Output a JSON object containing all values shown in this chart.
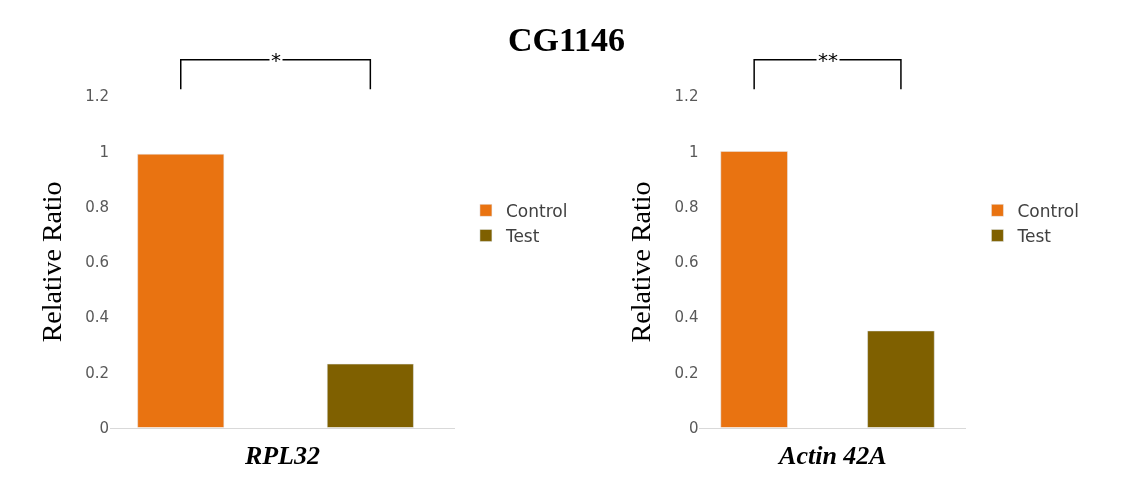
{
  "chart_data": [
    {
      "type": "bar",
      "xlabel": "RPL32",
      "ylabel": "Relative Ratio",
      "categories": [
        null
      ],
      "series": [
        {
          "name": "Control",
          "color": "#e97311",
          "values": [
            0.99
          ]
        },
        {
          "name": "Test",
          "color": "#7f6000",
          "values": [
            0.23
          ]
        }
      ],
      "ylim": [
        0,
        1.2
      ],
      "yticks": [
        0,
        0.2,
        0.4,
        0.6,
        0.8,
        1,
        1.2
      ],
      "legend": "right",
      "annotations": [
        "*",
        "CG1146"
      ]
    },
    {
      "type": "bar",
      "xlabel": "Actin 42A",
      "ylabel": "Relative Ratio",
      "categories": [
        null
      ],
      "series": [
        {
          "name": "Control",
          "color": "#e97311",
          "values": [
            1.0
          ]
        },
        {
          "name": "Test",
          "color": "#7f6000",
          "values": [
            0.35
          ]
        }
      ],
      "ylim": [
        0,
        1.2
      ],
      "yticks": [
        0,
        0.2,
        0.4,
        0.6,
        0.8,
        1,
        1.2
      ],
      "legend": "right",
      "annotations": [
        "**"
      ]
    }
  ]
}
